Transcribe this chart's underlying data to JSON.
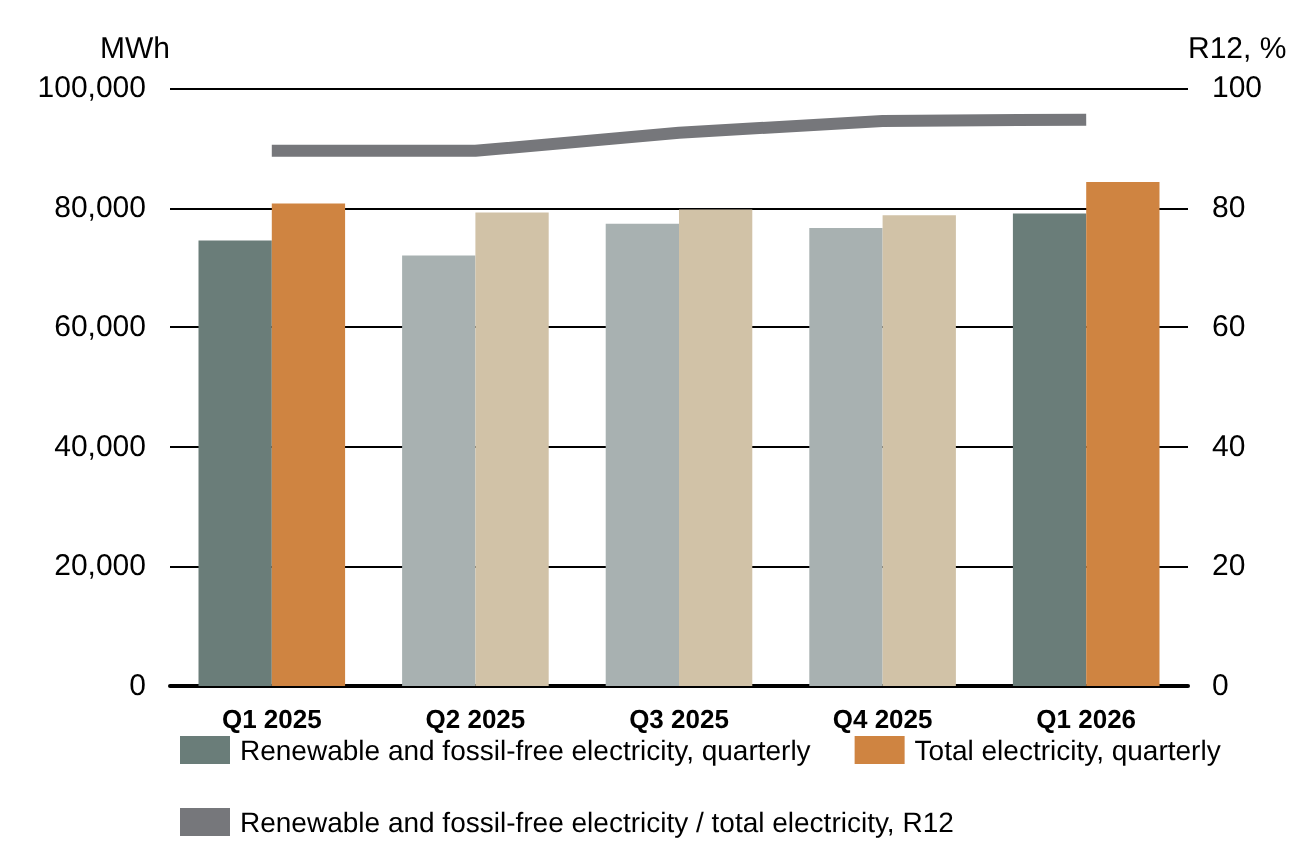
{
  "chart_data": {
    "type": "bar",
    "ylabel": "MWh",
    "y2label": "R12, %",
    "categories": [
      "Q1 2025",
      "Q2 2025",
      "Q3 2025",
      "Q4 2025",
      "Q1 2026"
    ],
    "series": [
      {
        "name": "Renewable and fossil-free electricity, quarterly",
        "color": "#6a7d79",
        "colors": [
          "#6a7d79",
          "#a8b1b1",
          "#a8b1b1",
          "#a8b1b1",
          "#6a7d79"
        ],
        "values": [
          74500,
          72000,
          77300,
          76600,
          79000
        ]
      },
      {
        "name": "Total electricity, quarterly",
        "color": "#cf8441",
        "colors": [
          "#cf8441",
          "#d1c2a7",
          "#d1c2a7",
          "#d1c2a7",
          "#cf8441"
        ],
        "values": [
          80700,
          79200,
          79700,
          78700,
          84300
        ]
      },
      {
        "name": "Renewable and fossil-free electricity / total electricity, R12",
        "type": "line",
        "axis": "y2",
        "color": "#76777b",
        "values": [
          89.5,
          89.5,
          92.5,
          94.5,
          94.7
        ]
      }
    ],
    "ylim": [
      0,
      100000
    ],
    "yticks": [
      0,
      {
        "value": 20000,
        "label": "20,000"
      },
      {
        "value": 40000,
        "label": "40,000"
      },
      {
        "value": 60000,
        "label": "60,000"
      },
      {
        "value": 80000,
        "label": "80,000"
      },
      {
        "value": 100000,
        "label": "100,000"
      }
    ],
    "y2lim": [
      0,
      100
    ],
    "y2ticks": [
      0,
      20,
      40,
      60,
      80,
      100
    ],
    "grid": "y",
    "legend": "bottom",
    "marker": "none"
  }
}
